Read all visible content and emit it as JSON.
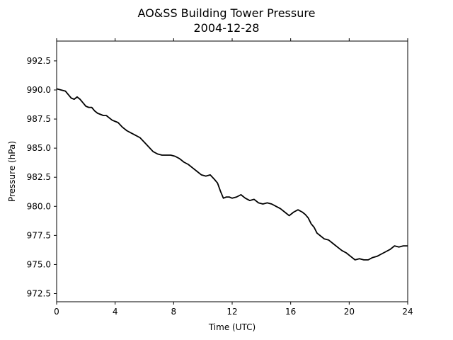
{
  "chart_data": {
    "type": "line",
    "title": "AO&SS Building Tower Pressure",
    "subtitle": "2004-12-28",
    "xlabel": "Time (UTC)",
    "ylabel": "Pressure (hPa)",
    "xlim": [
      0,
      24
    ],
    "ylim": [
      971.8,
      994.2
    ],
    "xticks": [
      0,
      4,
      8,
      12,
      16,
      20,
      24
    ],
    "yticks": [
      "972.5",
      "975.0",
      "977.5",
      "980.0",
      "982.5",
      "985.0",
      "987.5",
      "990.0",
      "992.5"
    ],
    "grid": false,
    "legend": "none",
    "line_color": "#000000",
    "series": [
      {
        "x": [
          0,
          0.3,
          0.6,
          0.8,
          1.0,
          1.2,
          1.4,
          1.6,
          1.8,
          2.0,
          2.2,
          2.4,
          2.6,
          2.8,
          3.0,
          3.2,
          3.4,
          3.6,
          3.8,
          4.0,
          4.2,
          4.5,
          4.8,
          5.1,
          5.4,
          5.7,
          6.0,
          6.3,
          6.6,
          6.9,
          7.2,
          7.5,
          7.8,
          8.1,
          8.4,
          8.7,
          9.0,
          9.3,
          9.6,
          9.9,
          10.2,
          10.5,
          10.8,
          11.0,
          11.2,
          11.4,
          11.6,
          11.8,
          12.0,
          12.3,
          12.6,
          12.9,
          13.2,
          13.5,
          13.8,
          14.1,
          14.4,
          14.7,
          15.0,
          15.3,
          15.6,
          15.9,
          16.2,
          16.5,
          16.8,
          17.0,
          17.2,
          17.4,
          17.6,
          17.8,
          18.0,
          18.3,
          18.6,
          18.9,
          19.2,
          19.5,
          19.8,
          20.1,
          20.4,
          20.7,
          21.0,
          21.3,
          21.6,
          21.9,
          22.2,
          22.5,
          22.8,
          23.1,
          23.4,
          23.7,
          24.0
        ],
        "y": [
          990.1,
          990.0,
          989.9,
          989.6,
          989.3,
          989.2,
          989.4,
          989.2,
          988.9,
          988.6,
          988.5,
          988.5,
          988.2,
          988.0,
          987.9,
          987.8,
          987.8,
          987.6,
          987.4,
          987.3,
          987.2,
          986.8,
          986.5,
          986.3,
          986.1,
          985.9,
          985.5,
          985.1,
          984.7,
          984.5,
          984.4,
          984.4,
          984.4,
          984.3,
          984.1,
          983.8,
          983.6,
          983.3,
          983.0,
          982.7,
          982.6,
          982.7,
          982.3,
          982.0,
          981.3,
          980.7,
          980.8,
          980.8,
          980.7,
          980.8,
          981.0,
          980.7,
          980.5,
          980.6,
          980.3,
          980.2,
          980.3,
          980.2,
          980.0,
          979.8,
          979.5,
          979.2,
          979.5,
          979.7,
          979.5,
          979.3,
          979.0,
          978.5,
          978.2,
          977.7,
          977.5,
          977.2,
          977.1,
          976.8,
          976.5,
          976.2,
          976.0,
          975.7,
          975.4,
          975.5,
          975.4,
          975.4,
          975.6,
          975.7,
          975.9,
          976.1,
          976.3,
          976.6,
          976.5,
          976.6,
          976.6
        ]
      }
    ]
  }
}
